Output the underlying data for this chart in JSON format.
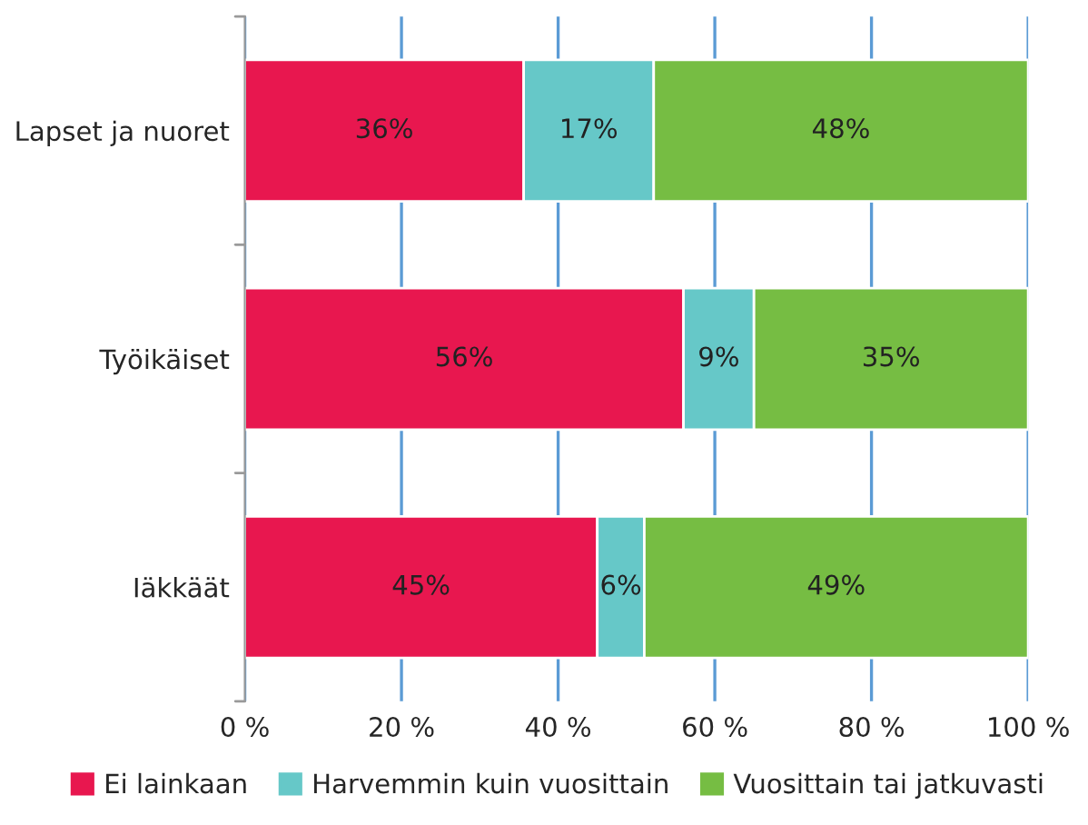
{
  "chart_data": {
    "type": "bar",
    "orientation": "horizontal",
    "stacked": true,
    "categories": [
      "Lapset ja nuoret",
      "Työikäiset",
      "Iäkkäät"
    ],
    "series": [
      {
        "name": "Ei lainkaan",
        "color": "#e8174f",
        "values": [
          35.6,
          56,
          45
        ],
        "value_labels": [
          "36%",
          "56%",
          "45%"
        ]
      },
      {
        "name": "Harvemmin kuin vuosittain",
        "color": "#66c8c8",
        "values": [
          16.6,
          9,
          6
        ],
        "value_labels": [
          "17%",
          "9%",
          "6%"
        ]
      },
      {
        "name": "Vuosittain tai jatkuvasti",
        "color": "#76bd43",
        "values": [
          47.8,
          35,
          49
        ],
        "value_labels": [
          "48%",
          "35%",
          "49%"
        ]
      }
    ],
    "xlim": [
      0,
      100
    ],
    "xticks": [
      {
        "value": 0,
        "label": "0 %"
      },
      {
        "value": 20,
        "label": "20 %"
      },
      {
        "value": 40,
        "label": "40 %"
      },
      {
        "value": 60,
        "label": "60 %"
      },
      {
        "value": 80,
        "label": "80 %"
      },
      {
        "value": 100,
        "label": "100 %"
      }
    ],
    "grid": "x",
    "legend": "bottom"
  }
}
